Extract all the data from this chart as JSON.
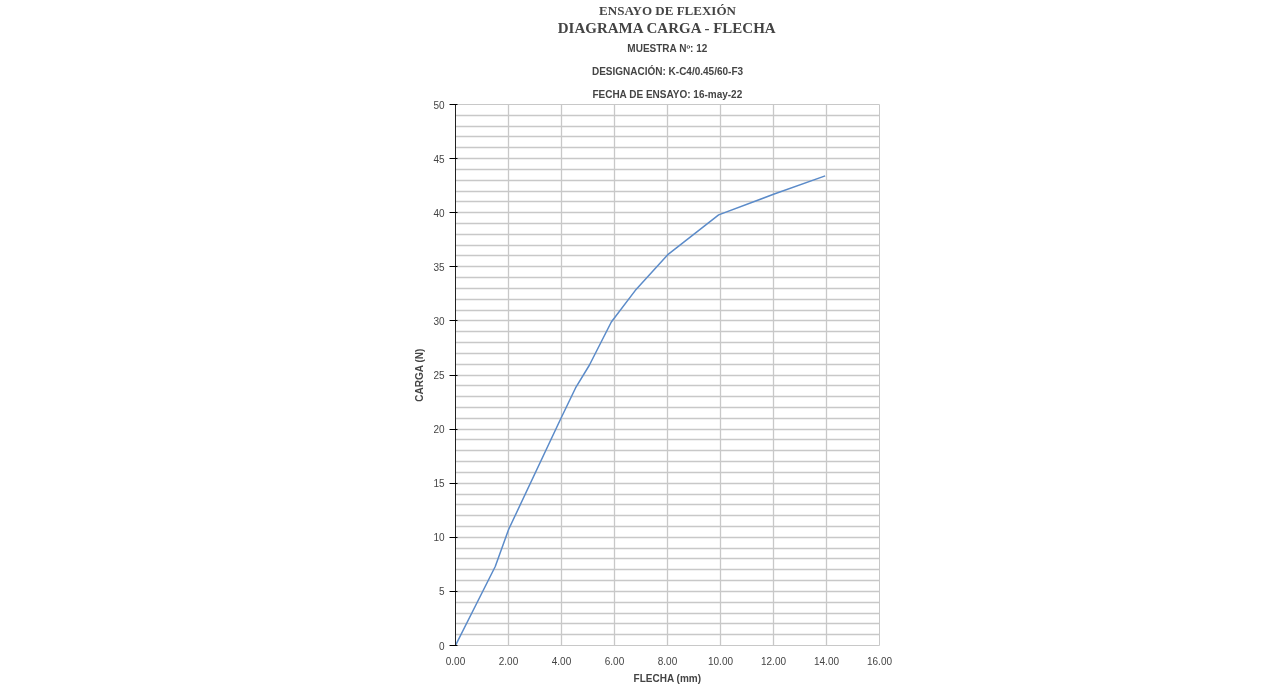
{
  "chart_data": {
    "type": "line",
    "title": "ENSAYO DE FLEXIÓN",
    "subtitle": "DIAGRAMA CARGA - FLECHA",
    "annotations": [
      "MUESTRA Nº: 12",
      "DESIGNACIÓN: K-C4/0.45/60-F3",
      "FECHA DE ENSAYO: 16-may-22"
    ],
    "xlabel": "FLECHA (mm)",
    "ylabel": "CARGA (N)",
    "x": [
      0,
      1.5,
      2.0,
      3.98,
      4.53,
      5.05,
      5.88,
      6.78,
      8.0,
      9.93,
      12.0,
      13.95
    ],
    "series": [
      {
        "color": "#5b8bc9",
        "values": [
          0,
          7.3,
          10.7,
          21.0,
          23.8,
          25.9,
          29.9,
          32.8,
          36.1,
          39.8,
          41.7,
          43.4
        ]
      }
    ],
    "xlim": [
      0,
      16
    ],
    "ylim": [
      0,
      50
    ],
    "xticks": [
      {
        "value": 0,
        "label": "0.00"
      },
      {
        "value": 2,
        "label": "2.00"
      },
      {
        "value": 4,
        "label": "4.00"
      },
      {
        "value": 6,
        "label": "6.00"
      },
      {
        "value": 8,
        "label": "8.00"
      },
      {
        "value": 10,
        "label": "10.00"
      },
      {
        "value": 12,
        "label": "12.00"
      },
      {
        "value": 14,
        "label": "14.00"
      },
      {
        "value": 16,
        "label": "16.00"
      }
    ],
    "yticks": [
      0,
      5,
      10,
      15,
      20,
      25,
      30,
      35,
      40,
      45,
      50
    ],
    "grid": true,
    "line_style": "solid",
    "marker": "none"
  }
}
